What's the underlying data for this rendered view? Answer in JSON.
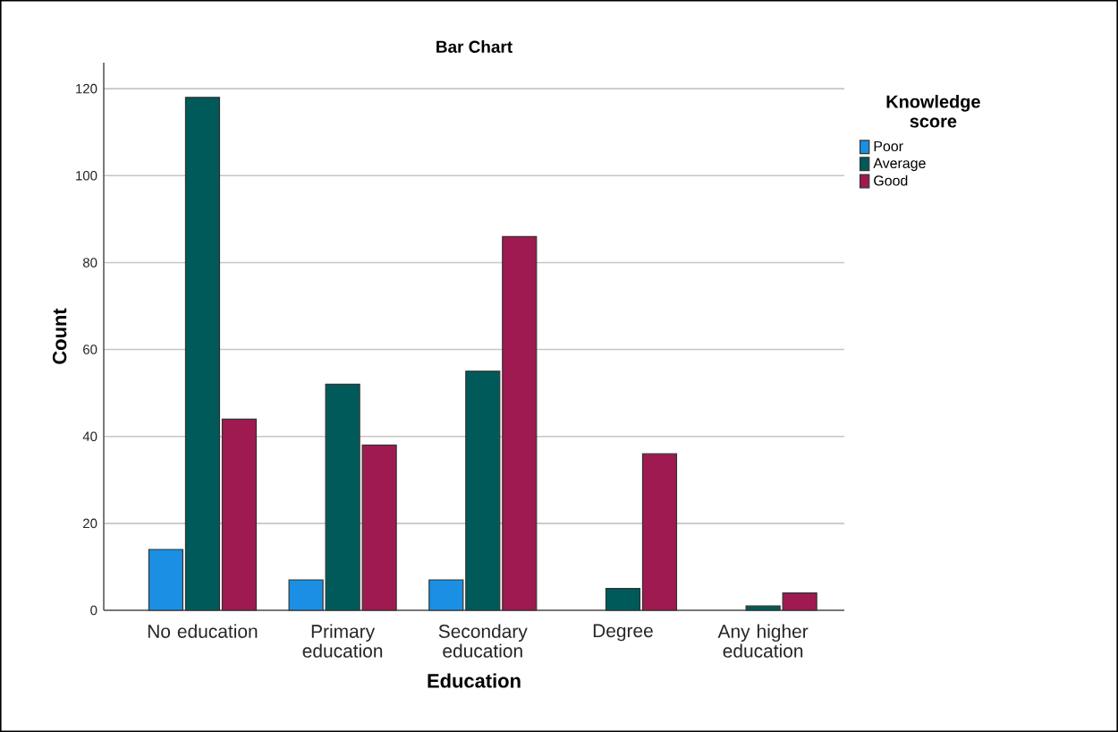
{
  "chart_data": {
    "type": "bar",
    "title": "Bar Chart",
    "xlabel": "Education",
    "ylabel": "Count",
    "legend_title": "Knowledge score",
    "categories": [
      "No education",
      "Primary education",
      "Secondary education",
      "Degree",
      "Any higher education"
    ],
    "series": [
      {
        "name": "Poor",
        "color": "#1a8fe3",
        "values": [
          14,
          7,
          7,
          null,
          null
        ]
      },
      {
        "name": "Average",
        "color": "#005a5a",
        "values": [
          118,
          52,
          55,
          5,
          1
        ]
      },
      {
        "name": "Good",
        "color": "#9e1a50",
        "values": [
          44,
          38,
          86,
          36,
          4
        ]
      }
    ],
    "ylim": [
      0,
      126
    ],
    "yticks": [
      0,
      20,
      40,
      60,
      80,
      100,
      120
    ],
    "grid": "y",
    "legend": "top right"
  }
}
